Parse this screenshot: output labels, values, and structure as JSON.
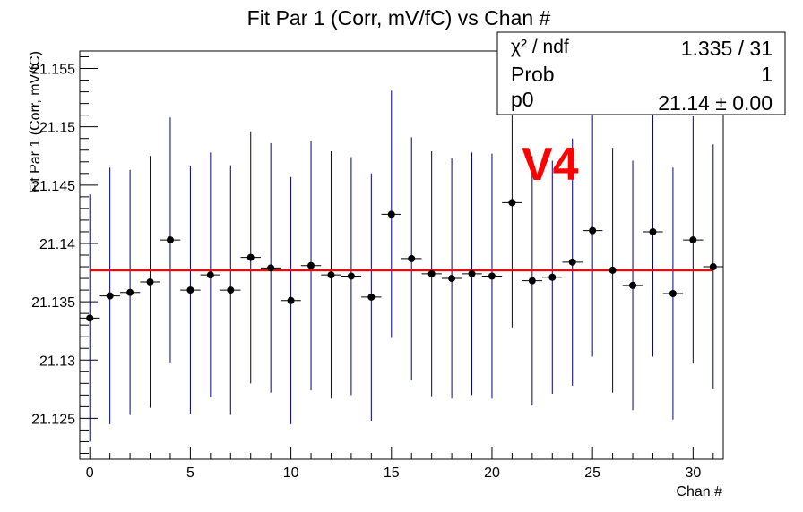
{
  "chart_data": {
    "type": "scatter",
    "title": "Fit Par 1 (Corr, mV/fC) vs Chan #",
    "xlabel": "Chan #",
    "ylabel": "Fit Par 1 (Corr, mV/fC)",
    "xlim": [
      -0.5,
      31.5
    ],
    "ylim": [
      21.1215,
      21.1565
    ],
    "xticks": [
      "0",
      "5",
      "10",
      "15",
      "20",
      "25",
      "30"
    ],
    "yticks": [
      "21.125",
      "21.13",
      "21.135",
      "21.14",
      "21.145",
      "21.15",
      "21.155"
    ],
    "points": [
      {
        "x": 0,
        "y": 21.1336,
        "err": 0.0106
      },
      {
        "x": 1,
        "y": 21.1355,
        "err": 0.011
      },
      {
        "x": 2,
        "y": 21.1358,
        "err": 0.0105
      },
      {
        "x": 3,
        "y": 21.1367,
        "err": 0.0108
      },
      {
        "x": 4,
        "y": 21.1403,
        "err": 0.0105
      },
      {
        "x": 5,
        "y": 21.136,
        "err": 0.0106
      },
      {
        "x": 6,
        "y": 21.1373,
        "err": 0.0105
      },
      {
        "x": 7,
        "y": 21.136,
        "err": 0.0107
      },
      {
        "x": 8,
        "y": 21.1388,
        "err": 0.0108
      },
      {
        "x": 9,
        "y": 21.1379,
        "err": 0.0107
      },
      {
        "x": 10,
        "y": 21.1351,
        "err": 0.0106
      },
      {
        "x": 11,
        "y": 21.1381,
        "err": 0.0107
      },
      {
        "x": 12,
        "y": 21.1373,
        "err": 0.0106
      },
      {
        "x": 13,
        "y": 21.1372,
        "err": 0.0102
      },
      {
        "x": 14,
        "y": 21.1354,
        "err": 0.0106
      },
      {
        "x": 15,
        "y": 21.1425,
        "err": 0.0106
      },
      {
        "x": 16,
        "y": 21.1387,
        "err": 0.0104
      },
      {
        "x": 17,
        "y": 21.1374,
        "err": 0.0105
      },
      {
        "x": 18,
        "y": 21.137,
        "err": 0.0103
      },
      {
        "x": 19,
        "y": 21.1374,
        "err": 0.0104
      },
      {
        "x": 20,
        "y": 21.1372,
        "err": 0.0105
      },
      {
        "x": 21,
        "y": 21.1435,
        "err": 0.0107
      },
      {
        "x": 22,
        "y": 21.1368,
        "err": 0.0107
      },
      {
        "x": 23,
        "y": 21.1371,
        "err": 0.01
      },
      {
        "x": 24,
        "y": 21.1384,
        "err": 0.0106
      },
      {
        "x": 25,
        "y": 21.1411,
        "err": 0.0108
      },
      {
        "x": 26,
        "y": 21.1377,
        "err": 0.0105
      },
      {
        "x": 27,
        "y": 21.1364,
        "err": 0.0107
      },
      {
        "x": 28,
        "y": 21.141,
        "err": 0.0107
      },
      {
        "x": 29,
        "y": 21.1357,
        "err": 0.0108
      },
      {
        "x": 30,
        "y": 21.1403,
        "err": 0.0106
      },
      {
        "x": 31,
        "y": 21.138,
        "err": 0.0105
      }
    ],
    "fit": {
      "y": 21.1377,
      "x_range": [
        0,
        31
      ],
      "color": "#ff0000"
    },
    "marker_color": "#000000",
    "errorbar_color": "#000080",
    "grid": false,
    "legend": "none"
  },
  "stats": {
    "chi2_label": "χ² / ndf",
    "chi2_value": "1.335 / 31",
    "prob_label": "Prob",
    "prob_value": "1",
    "p0_label": "p0",
    "p0_value": "21.14 ± 0.00"
  },
  "annotation": {
    "text": "V4",
    "color": "#ff0000"
  }
}
